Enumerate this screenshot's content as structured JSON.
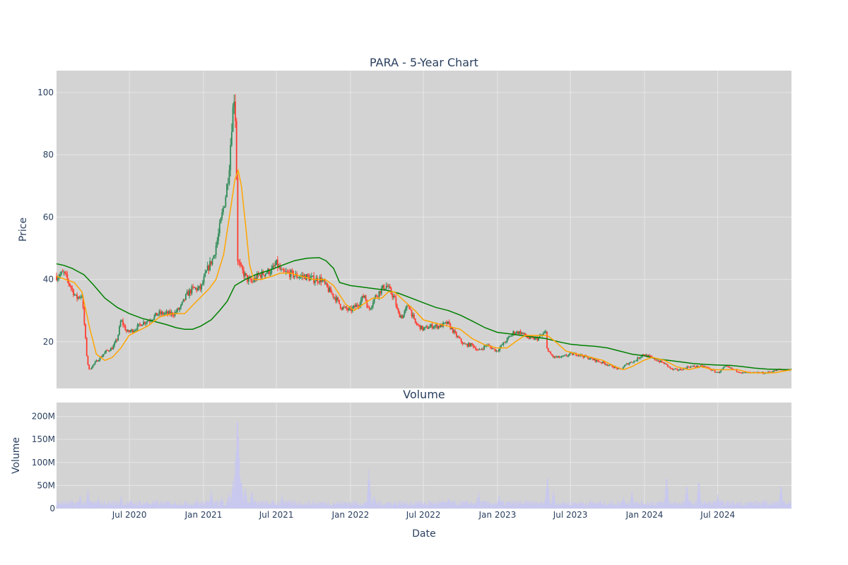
{
  "colors": {
    "background": "#ffffff",
    "plot_background": "#d3d3d3",
    "grid": "#e6e6e6",
    "text": "#2a3f5f",
    "increasing": "#2e8b57",
    "decreasing": "#ff3b30",
    "ma_short": "#ffa500",
    "ma_long": "#008000",
    "volume": "#c8c8f0"
  },
  "chart_data": [
    {
      "type": "candlestick",
      "title": "PARA - 5-Year Chart",
      "xlabel": "",
      "ylabel": "Price",
      "xlim": [
        "2020-01-02",
        "2024-12-31"
      ],
      "ylim": [
        5,
        107
      ],
      "y_ticks": [
        20,
        40,
        60,
        80,
        100
      ],
      "x_ticks": [
        {
          "date": "2020-07-01",
          "label": "Jul 2020"
        },
        {
          "date": "2021-01-01",
          "label": "Jan 2021"
        },
        {
          "date": "2021-07-01",
          "label": "Jul 2021"
        },
        {
          "date": "2022-01-01",
          "label": "Jan 2022"
        },
        {
          "date": "2022-07-01",
          "label": "Jul 2022"
        },
        {
          "date": "2023-01-01",
          "label": "Jan 2023"
        },
        {
          "date": "2023-07-01",
          "label": "Jul 2023"
        },
        {
          "date": "2024-01-01",
          "label": "Jan 2024"
        },
        {
          "date": "2024-07-01",
          "label": "Jul 2024"
        }
      ],
      "grid": true,
      "legend": "none",
      "close_path": [
        [
          "2020-01-02",
          41
        ],
        [
          "2020-01-20",
          42
        ],
        [
          "2020-02-05",
          38
        ],
        [
          "2020-02-20",
          34
        ],
        [
          "2020-03-05",
          35
        ],
        [
          "2020-03-12",
          24
        ],
        [
          "2020-03-18",
          14
        ],
        [
          "2020-03-23",
          11
        ],
        [
          "2020-04-05",
          13
        ],
        [
          "2020-04-20",
          15
        ],
        [
          "2020-05-05",
          17
        ],
        [
          "2020-05-20",
          18
        ],
        [
          "2020-06-01",
          21
        ],
        [
          "2020-06-10",
          27
        ],
        [
          "2020-06-25",
          23
        ],
        [
          "2020-07-15",
          24
        ],
        [
          "2020-08-01",
          26
        ],
        [
          "2020-08-20",
          27
        ],
        [
          "2020-09-10",
          29
        ],
        [
          "2020-10-01",
          29
        ],
        [
          "2020-10-20",
          29
        ],
        [
          "2020-11-05",
          31
        ],
        [
          "2020-11-20",
          35
        ],
        [
          "2020-12-05",
          37
        ],
        [
          "2020-12-25",
          37
        ],
        [
          "2021-01-10",
          43
        ],
        [
          "2021-01-25",
          47
        ],
        [
          "2021-02-05",
          53
        ],
        [
          "2021-02-15",
          60
        ],
        [
          "2021-02-25",
          67
        ],
        [
          "2021-03-05",
          75
        ],
        [
          "2021-03-12",
          90
        ],
        [
          "2021-03-18",
          99
        ],
        [
          "2021-03-22",
          90
        ],
        [
          "2021-03-25",
          65
        ],
        [
          "2021-03-26",
          47
        ],
        [
          "2021-04-01",
          44
        ],
        [
          "2021-04-10",
          42
        ],
        [
          "2021-04-20",
          40
        ],
        [
          "2021-05-01",
          39
        ],
        [
          "2021-05-15",
          41
        ],
        [
          "2021-06-01",
          42
        ],
        [
          "2021-06-20",
          43
        ],
        [
          "2021-07-01",
          45
        ],
        [
          "2021-07-15",
          42
        ],
        [
          "2021-08-01",
          42
        ],
        [
          "2021-08-20",
          41
        ],
        [
          "2021-09-10",
          41
        ],
        [
          "2021-10-01",
          40
        ],
        [
          "2021-10-20",
          40
        ],
        [
          "2021-11-05",
          37
        ],
        [
          "2021-11-25",
          34
        ],
        [
          "2021-12-10",
          31
        ],
        [
          "2021-12-31",
          30
        ],
        [
          "2022-01-20",
          32
        ],
        [
          "2022-02-05",
          35
        ],
        [
          "2022-02-15",
          30
        ],
        [
          "2022-03-01",
          34
        ],
        [
          "2022-03-20",
          37
        ],
        [
          "2022-04-01",
          38
        ],
        [
          "2022-04-10",
          36
        ],
        [
          "2022-04-20",
          34
        ],
        [
          "2022-04-29",
          29
        ],
        [
          "2022-05-10",
          28
        ],
        [
          "2022-05-25",
          32
        ],
        [
          "2022-06-10",
          26
        ],
        [
          "2022-06-30",
          24
        ],
        [
          "2022-07-20",
          25
        ],
        [
          "2022-08-10",
          25
        ],
        [
          "2022-08-30",
          26
        ],
        [
          "2022-09-20",
          22
        ],
        [
          "2022-10-10",
          19
        ],
        [
          "2022-10-30",
          19
        ],
        [
          "2022-11-15",
          17
        ],
        [
          "2022-12-05",
          19
        ],
        [
          "2022-12-30",
          17
        ],
        [
          "2023-01-20",
          20
        ],
        [
          "2023-02-10",
          23
        ],
        [
          "2023-02-28",
          23
        ],
        [
          "2023-03-20",
          21
        ],
        [
          "2023-04-10",
          21
        ],
        [
          "2023-05-01",
          23
        ],
        [
          "2023-05-05",
          17
        ],
        [
          "2023-05-20",
          15
        ],
        [
          "2023-06-10",
          15
        ],
        [
          "2023-07-01",
          16
        ],
        [
          "2023-07-20",
          16
        ],
        [
          "2023-08-10",
          15
        ],
        [
          "2023-09-01",
          14
        ],
        [
          "2023-09-25",
          13
        ],
        [
          "2023-10-15",
          12
        ],
        [
          "2023-11-01",
          11
        ],
        [
          "2023-11-20",
          13
        ],
        [
          "2023-12-10",
          14
        ],
        [
          "2023-12-28",
          16
        ],
        [
          "2024-01-15",
          15
        ],
        [
          "2024-02-01",
          14
        ],
        [
          "2024-02-20",
          13
        ],
        [
          "2024-03-10",
          11
        ],
        [
          "2024-03-30",
          11
        ],
        [
          "2024-04-20",
          12
        ],
        [
          "2024-05-10",
          12
        ],
        [
          "2024-05-30",
          12
        ],
        [
          "2024-06-15",
          11
        ],
        [
          "2024-07-01",
          10
        ],
        [
          "2024-07-20",
          12
        ],
        [
          "2024-08-10",
          11
        ],
        [
          "2024-09-01",
          10
        ],
        [
          "2024-09-30",
          10
        ],
        [
          "2024-10-30",
          10
        ],
        [
          "2024-11-30",
          11
        ],
        [
          "2024-12-31",
          11
        ]
      ],
      "ma_short": [
        [
          "2020-01-02",
          41
        ],
        [
          "2020-02-15",
          39
        ],
        [
          "2020-03-05",
          36
        ],
        [
          "2020-03-25",
          24
        ],
        [
          "2020-04-10",
          16
        ],
        [
          "2020-05-01",
          14
        ],
        [
          "2020-05-20",
          15
        ],
        [
          "2020-06-10",
          18
        ],
        [
          "2020-06-30",
          22
        ],
        [
          "2020-07-15",
          23
        ],
        [
          "2020-08-15",
          25
        ],
        [
          "2020-09-15",
          28
        ],
        [
          "2020-10-15",
          29
        ],
        [
          "2020-11-15",
          29
        ],
        [
          "2020-12-15",
          33
        ],
        [
          "2021-01-15",
          37
        ],
        [
          "2021-02-01",
          40
        ],
        [
          "2021-02-20",
          48
        ],
        [
          "2021-03-05",
          59
        ],
        [
          "2021-03-20",
          72
        ],
        [
          "2021-03-28",
          75
        ],
        [
          "2021-04-05",
          70
        ],
        [
          "2021-04-15",
          58
        ],
        [
          "2021-04-25",
          45
        ],
        [
          "2021-05-05",
          40
        ],
        [
          "2021-05-25",
          40
        ],
        [
          "2021-06-20",
          41
        ],
        [
          "2021-07-10",
          42
        ],
        [
          "2021-08-05",
          42
        ],
        [
          "2021-09-01",
          41
        ],
        [
          "2021-10-01",
          40
        ],
        [
          "2021-10-30",
          40
        ],
        [
          "2021-11-20",
          38
        ],
        [
          "2021-12-20",
          32
        ],
        [
          "2022-01-10",
          30
        ],
        [
          "2022-02-01",
          32
        ],
        [
          "2022-02-25",
          34
        ],
        [
          "2022-03-20",
          34
        ],
        [
          "2022-04-05",
          36
        ],
        [
          "2022-04-20",
          36
        ],
        [
          "2022-05-15",
          33
        ],
        [
          "2022-06-10",
          30
        ],
        [
          "2022-07-01",
          27
        ],
        [
          "2022-07-30",
          26
        ],
        [
          "2022-08-30",
          25
        ],
        [
          "2022-09-30",
          24
        ],
        [
          "2022-10-30",
          21
        ],
        [
          "2022-11-30",
          19
        ],
        [
          "2022-12-30",
          18
        ],
        [
          "2023-01-25",
          18
        ],
        [
          "2023-02-15",
          20
        ],
        [
          "2023-03-10",
          22
        ],
        [
          "2023-04-10",
          22
        ],
        [
          "2023-05-05",
          22
        ],
        [
          "2023-05-25",
          20
        ],
        [
          "2023-06-20",
          17
        ],
        [
          "2023-07-20",
          16
        ],
        [
          "2023-08-20",
          15
        ],
        [
          "2023-09-20",
          14
        ],
        [
          "2023-10-20",
          12
        ],
        [
          "2023-11-10",
          11
        ],
        [
          "2023-12-01",
          12
        ],
        [
          "2023-12-30",
          14
        ],
        [
          "2024-01-20",
          15
        ],
        [
          "2024-02-20",
          14
        ],
        [
          "2024-03-20",
          12
        ],
        [
          "2024-04-20",
          11
        ],
        [
          "2024-05-20",
          12
        ],
        [
          "2024-06-20",
          11
        ],
        [
          "2024-07-20",
          11
        ],
        [
          "2024-08-20",
          11
        ],
        [
          "2024-09-20",
          10
        ],
        [
          "2024-10-20",
          10
        ],
        [
          "2024-11-20",
          10
        ],
        [
          "2024-12-31",
          11
        ]
      ],
      "ma_long": [
        [
          "2020-01-02",
          45
        ],
        [
          "2020-01-20",
          44.5
        ],
        [
          "2020-02-10",
          43.5
        ],
        [
          "2020-03-10",
          41.5
        ],
        [
          "2020-04-01",
          38.5
        ],
        [
          "2020-05-01",
          34
        ],
        [
          "2020-06-01",
          31
        ],
        [
          "2020-07-01",
          29
        ],
        [
          "2020-08-01",
          27.5
        ],
        [
          "2020-09-01",
          26.5
        ],
        [
          "2020-10-01",
          25.5
        ],
        [
          "2020-10-25",
          24.5
        ],
        [
          "2020-11-15",
          24
        ],
        [
          "2020-12-05",
          24
        ],
        [
          "2020-12-25",
          25
        ],
        [
          "2021-01-20",
          27
        ],
        [
          "2021-02-10",
          30
        ],
        [
          "2021-03-01",
          33
        ],
        [
          "2021-03-20",
          38
        ],
        [
          "2021-04-15",
          40
        ],
        [
          "2021-05-10",
          41.5
        ],
        [
          "2021-06-15",
          43
        ],
        [
          "2021-07-15",
          44.5
        ],
        [
          "2021-08-15",
          46
        ],
        [
          "2021-09-15",
          46.8
        ],
        [
          "2021-10-15",
          47
        ],
        [
          "2021-11-01",
          46
        ],
        [
          "2021-11-20",
          43.5
        ],
        [
          "2021-12-05",
          39
        ],
        [
          "2022-01-01",
          38
        ],
        [
          "2022-02-01",
          37.5
        ],
        [
          "2022-03-01",
          37
        ],
        [
          "2022-04-01",
          36.5
        ],
        [
          "2022-05-01",
          35.5
        ],
        [
          "2022-06-01",
          34
        ],
        [
          "2022-07-01",
          32.5
        ],
        [
          "2022-08-01",
          31
        ],
        [
          "2022-09-01",
          30
        ],
        [
          "2022-10-01",
          28.5
        ],
        [
          "2022-11-01",
          26.5
        ],
        [
          "2022-12-01",
          24.5
        ],
        [
          "2023-01-01",
          23
        ],
        [
          "2023-02-01",
          22.5
        ],
        [
          "2023-03-01",
          22
        ],
        [
          "2023-04-01",
          21.5
        ],
        [
          "2023-05-01",
          21
        ],
        [
          "2023-06-01",
          20
        ],
        [
          "2023-07-01",
          19.2
        ],
        [
          "2023-08-01",
          18.8
        ],
        [
          "2023-09-01",
          18.5
        ],
        [
          "2023-10-01",
          18
        ],
        [
          "2023-11-01",
          17
        ],
        [
          "2023-12-01",
          16
        ],
        [
          "2024-01-01",
          15.5
        ],
        [
          "2024-02-01",
          14.5
        ],
        [
          "2024-03-01",
          14
        ],
        [
          "2024-04-01",
          13.5
        ],
        [
          "2024-05-01",
          13
        ],
        [
          "2024-06-01",
          12.7
        ],
        [
          "2024-07-01",
          12.5
        ],
        [
          "2024-08-01",
          12.4
        ],
        [
          "2024-09-01",
          12
        ],
        [
          "2024-10-01",
          11.5
        ],
        [
          "2024-11-01",
          11.2
        ],
        [
          "2024-12-31",
          11
        ]
      ]
    },
    {
      "type": "bar",
      "title": "Volume",
      "xlabel": "Date",
      "ylabel": "Volume",
      "ylim": [
        0,
        230000000
      ],
      "y_ticks": [
        {
          "value": 0,
          "label": "0"
        },
        {
          "value": 50000000,
          "label": "50M"
        },
        {
          "value": 100000000,
          "label": "100M"
        },
        {
          "value": 150000000,
          "label": "150M"
        },
        {
          "value": 200000000,
          "label": "200M"
        }
      ],
      "x_ticks": [
        {
          "date": "2020-07-01",
          "label": "Jul 2020"
        },
        {
          "date": "2021-01-01",
          "label": "Jan 2021"
        },
        {
          "date": "2021-07-01",
          "label": "Jul 2021"
        },
        {
          "date": "2022-01-01",
          "label": "Jan 2022"
        },
        {
          "date": "2022-07-01",
          "label": "Jul 2022"
        },
        {
          "date": "2023-01-01",
          "label": "Jan 2023"
        },
        {
          "date": "2023-07-01",
          "label": "Jul 2023"
        },
        {
          "date": "2024-01-01",
          "label": "Jan 2024"
        },
        {
          "date": "2024-07-01",
          "label": "Jul 2024"
        }
      ],
      "base_volume": 12000000,
      "spikes": [
        [
          "2020-03-01",
          30000000
        ],
        [
          "2020-03-20",
          42000000
        ],
        [
          "2020-04-15",
          25000000
        ],
        [
          "2020-06-10",
          28000000
        ],
        [
          "2020-12-15",
          22000000
        ],
        [
          "2021-01-20",
          40000000
        ],
        [
          "2021-02-15",
          25000000
        ],
        [
          "2021-03-05",
          35000000
        ],
        [
          "2021-03-15",
          60000000
        ],
        [
          "2021-03-22",
          120000000
        ],
        [
          "2021-03-26",
          218000000
        ],
        [
          "2021-03-29",
          155000000
        ],
        [
          "2021-04-05",
          65000000
        ],
        [
          "2021-04-15",
          50000000
        ],
        [
          "2021-05-01",
          40000000
        ],
        [
          "2021-07-15",
          30000000
        ],
        [
          "2022-02-16",
          85000000
        ],
        [
          "2022-03-01",
          30000000
        ],
        [
          "2022-09-01",
          25000000
        ],
        [
          "2022-11-15",
          35000000
        ],
        [
          "2023-01-05",
          30000000
        ],
        [
          "2023-05-05",
          75000000
        ],
        [
          "2023-05-20",
          40000000
        ],
        [
          "2023-11-10",
          25000000
        ],
        [
          "2023-12-01",
          40000000
        ],
        [
          "2024-02-25",
          75000000
        ],
        [
          "2024-04-15",
          55000000
        ],
        [
          "2024-05-15",
          65000000
        ],
        [
          "2024-07-01",
          30000000
        ],
        [
          "2024-12-05",
          55000000
        ]
      ]
    }
  ]
}
